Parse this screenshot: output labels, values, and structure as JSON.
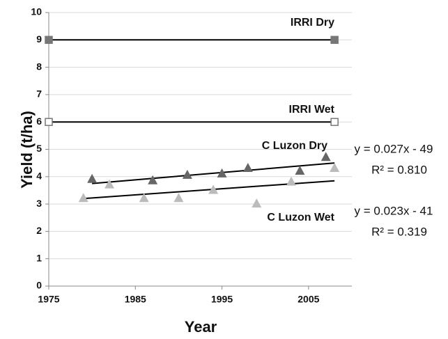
{
  "chart_data": {
    "type": "scatter",
    "x_label": "Year",
    "y_label": "Yield (t/ha)",
    "xlim": [
      1975,
      2010
    ],
    "ylim": [
      0,
      10
    ],
    "xticks": [
      1975,
      1985,
      1995,
      2005
    ],
    "yticks": [
      0,
      1,
      2,
      3,
      4,
      5,
      6,
      7,
      8,
      9,
      10
    ],
    "grid": true,
    "series": [
      {
        "name": "IRRI Dry",
        "color": "#777777",
        "marker": "square",
        "filled": true,
        "connect": true,
        "x": [
          1975,
          2008
        ],
        "values": [
          9,
          9
        ]
      },
      {
        "name": "IRRI Wet",
        "color": "#777777",
        "marker": "square",
        "filled": false,
        "connect": true,
        "x": [
          1975,
          2008
        ],
        "values": [
          6,
          6
        ]
      },
      {
        "name": "C Luzon Dry",
        "color": "#666666",
        "marker": "triangle",
        "filled": true,
        "connect": false,
        "x": [
          1980,
          1987,
          1991,
          1995,
          1998,
          2004,
          2007
        ],
        "values": [
          3.9,
          3.85,
          4.05,
          4.1,
          4.3,
          4.2,
          4.7
        ],
        "trend": {
          "x": [
            1980,
            2008
          ],
          "values": [
            3.75,
            4.5
          ]
        }
      },
      {
        "name": "C Luzon Wet",
        "color": "#bbbbbb",
        "marker": "triangle",
        "filled": true,
        "connect": false,
        "x": [
          1979,
          1982,
          1986,
          1990,
          1994,
          1999,
          2003,
          2008
        ],
        "values": [
          3.2,
          3.7,
          3.2,
          3.2,
          3.5,
          3.0,
          3.8,
          4.3
        ],
        "trend": {
          "x": [
            1979,
            2008
          ],
          "values": [
            3.2,
            3.85
          ]
        }
      }
    ],
    "annotations": [
      "y = 0.027x - 49",
      "R² = 0.810",
      "y = 0.023x - 41",
      "R² = 0.319"
    ]
  }
}
